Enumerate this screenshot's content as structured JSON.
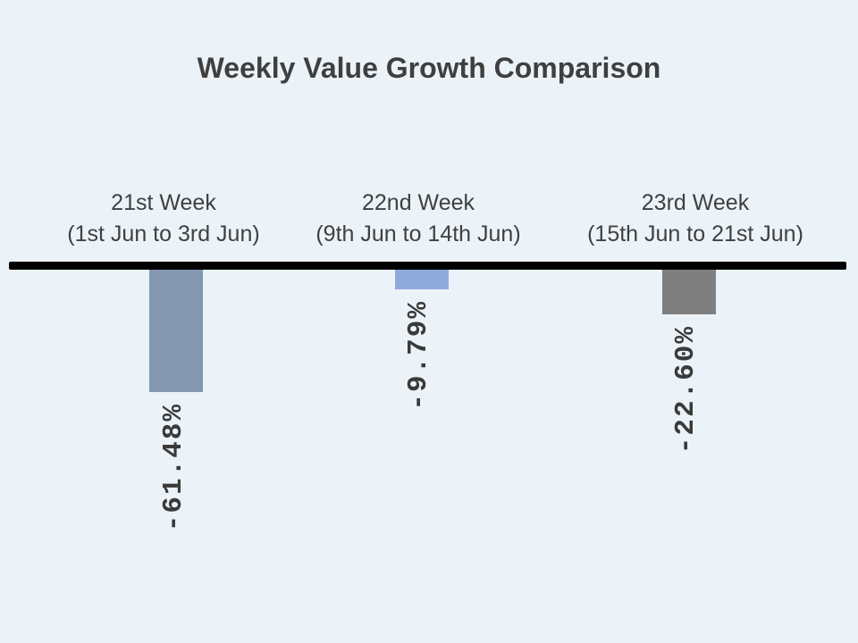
{
  "slide": {
    "background_color": "#EBF3F8"
  },
  "chart_data": {
    "type": "bar",
    "title": "Weekly Value Growth Comparison",
    "title_color": "#3F3F3F",
    "categories": [
      {
        "line1": "21st Week",
        "line2": "(1st Jun to 3rd Jun)"
      },
      {
        "line1": "22nd Week",
        "line2": "(9th Jun to 14th Jun)"
      },
      {
        "line1": "23rd Week",
        "line2": "(15th Jun to 21st Jun)"
      }
    ],
    "values": [
      -61.48,
      -9.79,
      -22.6
    ],
    "data_labels": [
      "-61.48%",
      "-9.79%",
      "-22.60%"
    ],
    "data_label_rotation_deg": 90,
    "bar_colors": [
      "#8497B0",
      "#8EA9DB",
      "#7F7F7F"
    ],
    "baseline_value": 0,
    "axis_line_color": "#010101",
    "value_axis_visible": false,
    "gridlines": false,
    "legend": false,
    "xlabel": "",
    "ylabel": ""
  }
}
